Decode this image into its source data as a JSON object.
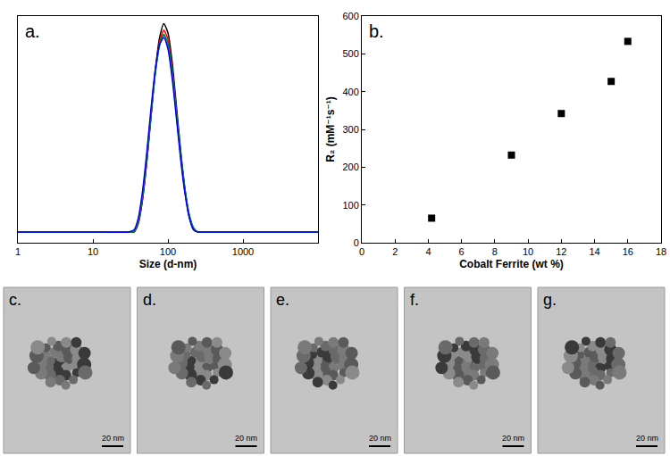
{
  "chart_data": [
    {
      "type": "line",
      "annotations": [
        "a."
      ],
      "x_label": "Size (d-nm)",
      "log": "x",
      "xlim": [
        1,
        10000
      ],
      "xticks": [
        1,
        10,
        100,
        1000
      ],
      "ylim": [
        -1,
        20
      ],
      "tick_labels": "x",
      "grid": false,
      "x": [
        1,
        10,
        30,
        35.4,
        40.3,
        45.9,
        52.3,
        59.6,
        67.9,
        77.4,
        88.1,
        100.4,
        114.4,
        130.3,
        148.4,
        169.1,
        192.6,
        219.4,
        250,
        300,
        1000,
        10000
      ],
      "series": [
        {
          "color": "#000000",
          "values": [
            0,
            0,
            0,
            0,
            0.8,
            3.0,
            6.5,
            10.8,
            15.0,
            18.0,
            19.3,
            18.4,
            15.6,
            11.5,
            7.4,
            3.9,
            1.4,
            0.2,
            0,
            0,
            0,
            0
          ]
        },
        {
          "color": "#ff0000",
          "values": [
            0,
            0,
            0,
            0,
            0.9,
            3.1,
            6.6,
            10.8,
            14.8,
            17.6,
            18.7,
            17.8,
            15.0,
            11.0,
            7.0,
            3.7,
            1.4,
            0.3,
            0,
            0,
            0,
            0
          ]
        },
        {
          "color": "#008000",
          "values": [
            0,
            0,
            0,
            0,
            1.0,
            3.3,
            6.8,
            10.9,
            14.7,
            17.3,
            18.3,
            17.4,
            14.7,
            10.9,
            7.1,
            3.9,
            1.6,
            0.4,
            0,
            0,
            0,
            0
          ]
        },
        {
          "color": "#008080",
          "values": [
            0,
            0,
            0,
            0.1,
            1.1,
            3.5,
            7.0,
            11.1,
            14.8,
            17.3,
            18.2,
            17.2,
            14.5,
            10.7,
            6.9,
            3.7,
            1.5,
            0.3,
            0,
            0,
            0,
            0
          ]
        },
        {
          "color": "#0000ff",
          "values": [
            0,
            0,
            0,
            0.2,
            1.3,
            3.8,
            7.4,
            11.5,
            15.1,
            17.4,
            18.0,
            16.9,
            14.1,
            10.4,
            6.6,
            3.5,
            1.3,
            0.2,
            0,
            0,
            0,
            0
          ]
        }
      ]
    },
    {
      "type": "scatter",
      "annotations": [
        "b."
      ],
      "x_label": "Cobalt Ferrite (wt %)",
      "y_label": "R₂ (mM⁻¹s⁻¹)",
      "xlim": [
        0,
        18
      ],
      "xticks": [
        0,
        2,
        4,
        6,
        8,
        10,
        12,
        14,
        16,
        18
      ],
      "ylim": [
        0,
        600
      ],
      "yticks": [
        0,
        100,
        200,
        300,
        400,
        500,
        600
      ],
      "grid": false,
      "x": [
        4.2,
        9,
        12,
        15,
        16
      ],
      "values": [
        65,
        232,
        342,
        427,
        533
      ],
      "color": "#000000",
      "marker": "square"
    }
  ],
  "images": [
    {
      "label": "c.",
      "scale_bar": "20 nm"
    },
    {
      "label": "d.",
      "scale_bar": "20 nm"
    },
    {
      "label": "e.",
      "scale_bar": "20 nm"
    },
    {
      "label": "f.",
      "scale_bar": "20 nm"
    },
    {
      "label": "g.",
      "scale_bar": "20 nm"
    }
  ]
}
